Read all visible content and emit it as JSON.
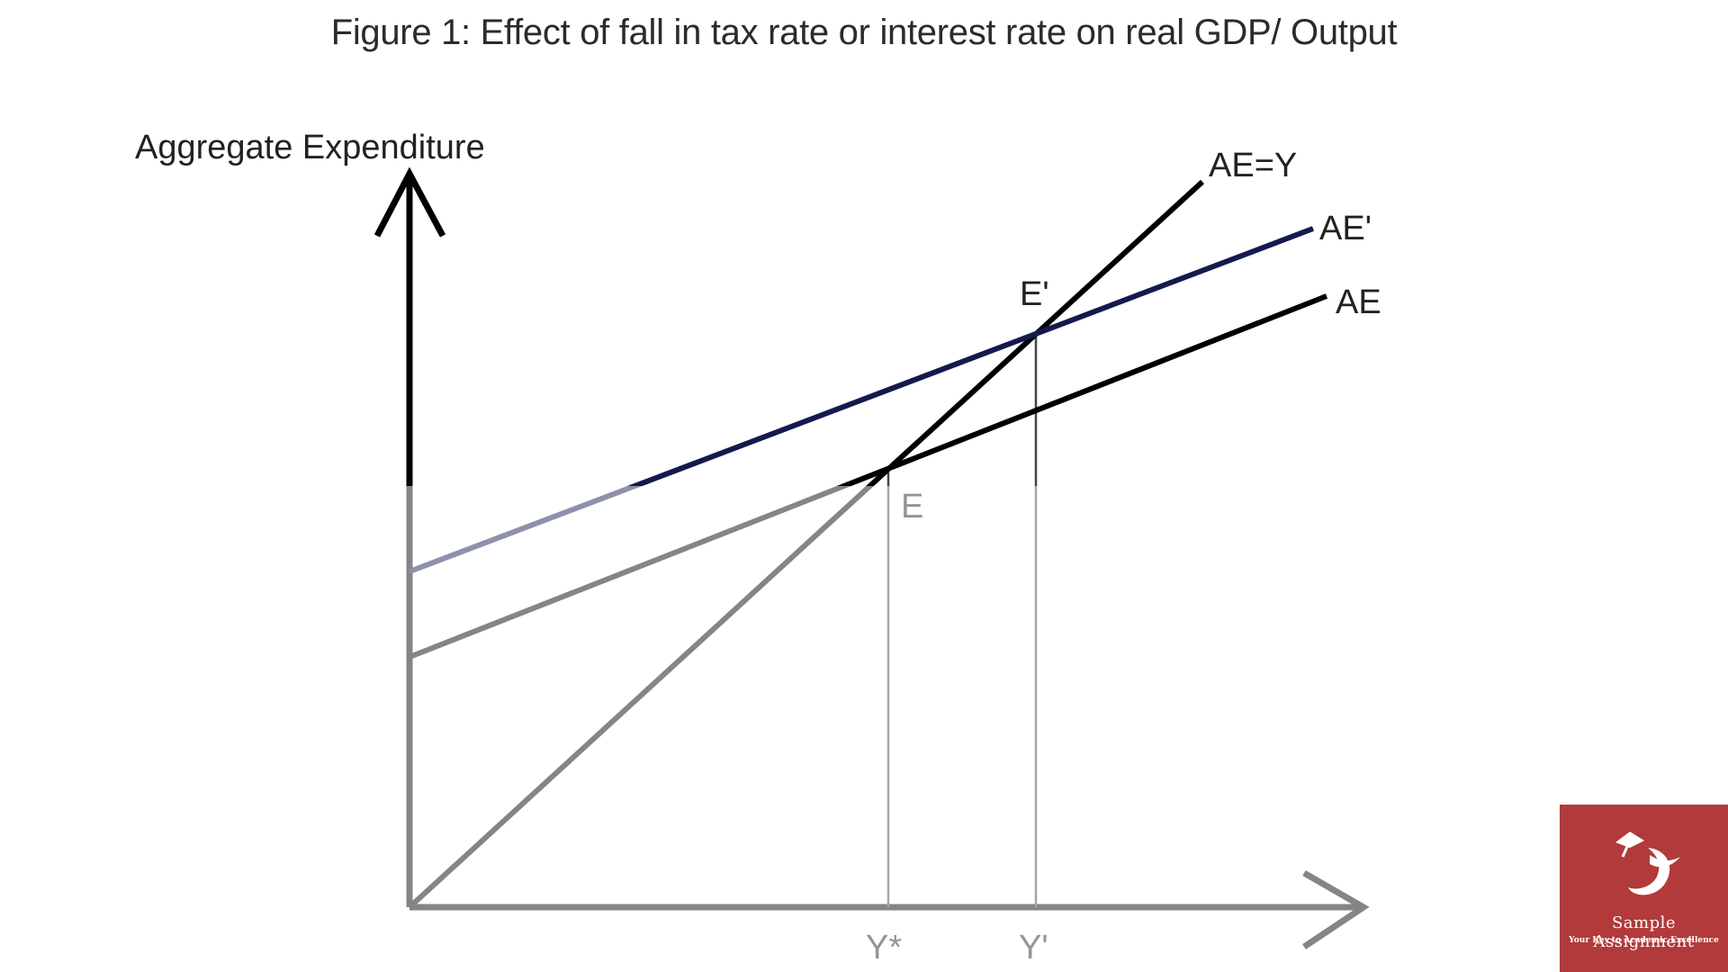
{
  "title": "Figure 1: Effect of fall in tax rate or interest rate on real GDP/ Output",
  "y_axis_label": "Aggregate Expenditure",
  "lines": [
    {
      "key": "ae_y",
      "label": "AE=Y",
      "color": "#000000"
    },
    {
      "key": "ae_prime",
      "label": "AE'",
      "color": "#141a4e"
    },
    {
      "key": "ae",
      "label": "AE",
      "color": "#000000"
    }
  ],
  "points": [
    {
      "key": "e",
      "label": "E"
    },
    {
      "key": "e_prime",
      "label": "E'"
    }
  ],
  "x_ticks": [
    {
      "key": "y_star",
      "label": "Y*"
    },
    {
      "key": "y_prime",
      "label": "Y'"
    }
  ],
  "logo": {
    "brand": "Sample Assignment",
    "tagline": "Your Key to Academic Excellence",
    "color": "#b23a3a"
  }
}
